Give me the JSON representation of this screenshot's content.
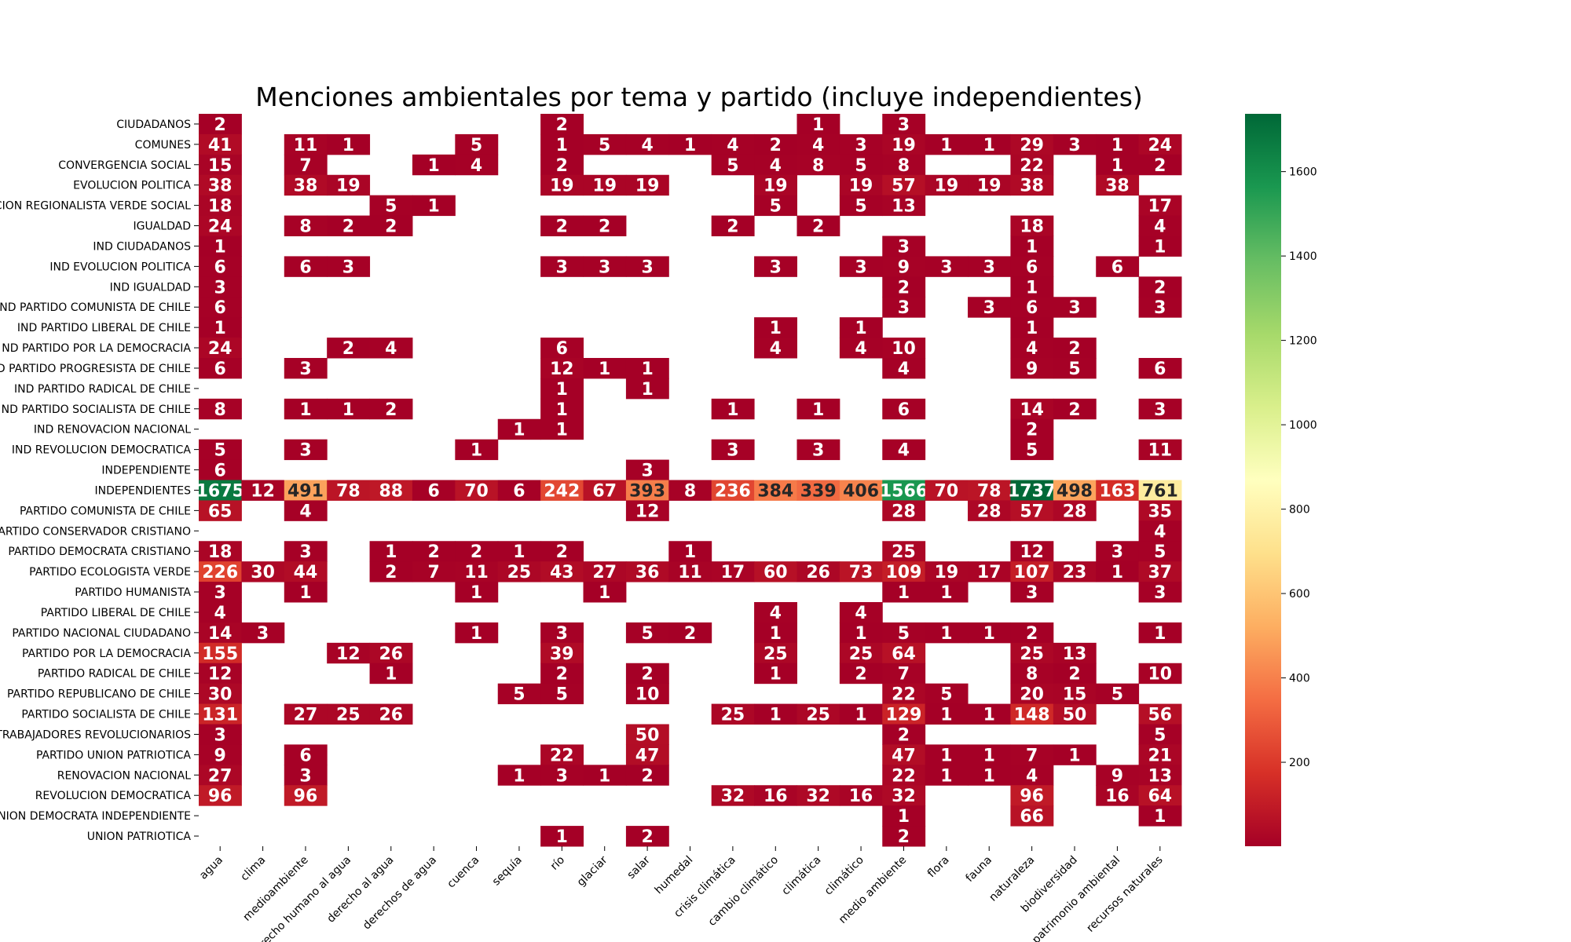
{
  "chart_data": {
    "type": "heatmap",
    "title": "Menciones ambientales por tema y partido (incluye independientes)",
    "xlabel": "",
    "ylabel": "",
    "colormap": [
      "#a50026",
      "#d73027",
      "#f46d43",
      "#fdae61",
      "#fee08b",
      "#ffffbf",
      "#d9ef8b",
      "#a6d96a",
      "#66bd63",
      "#1a9850",
      "#006837"
    ],
    "color_range": [
      1,
      1737
    ],
    "colorbar_ticks": [
      200,
      400,
      600,
      800,
      1000,
      1200,
      1400,
      1600
    ],
    "columns": [
      "agua",
      "clima",
      "medioambiente",
      "derecho humano al agua",
      "derecho al agua",
      "derechos de agua",
      "cuenca",
      "sequía",
      "río",
      "glaciar",
      "salar",
      "humedal",
      "crisis climática",
      "cambio climático",
      "climática",
      "climático",
      "medio ambiente",
      "flora",
      "fauna",
      "naturaleza",
      "biodiversidad",
      "patrimonio ambiental",
      "recursos naturales"
    ],
    "rows": [
      "CIUDADANOS",
      "COMUNES",
      "CONVERGENCIA SOCIAL",
      "EVOLUCION POLITICA",
      "FEDERACION REGIONALISTA VERDE SOCIAL",
      "IGUALDAD",
      "IND CIUDADANOS",
      "IND EVOLUCION POLITICA",
      "IND IGUALDAD",
      "IND PARTIDO COMUNISTA DE CHILE",
      "IND PARTIDO LIBERAL DE CHILE",
      "IND PARTIDO POR LA DEMOCRACIA",
      "IND PARTIDO PROGRESISTA DE CHILE",
      "IND PARTIDO RADICAL DE CHILE",
      "IND PARTIDO SOCIALISTA DE CHILE",
      "IND RENOVACION NACIONAL",
      "IND REVOLUCION DEMOCRATICA",
      "INDEPENDIENTE",
      "INDEPENDIENTES",
      "PARTIDO COMUNISTA DE CHILE",
      "PARTIDO CONSERVADOR CRISTIANO",
      "PARTIDO DEMOCRATA CRISTIANO",
      "PARTIDO ECOLOGISTA VERDE",
      "PARTIDO HUMANISTA",
      "PARTIDO LIBERAL DE CHILE",
      "PARTIDO NACIONAL CIUDADANO",
      "PARTIDO POR LA DEMOCRACIA",
      "PARTIDO RADICAL DE CHILE",
      "PARTIDO REPUBLICANO DE CHILE",
      "PARTIDO SOCIALISTA DE CHILE",
      "PARTIDO DE TRABAJADORES REVOLUCIONARIOS",
      "PARTIDO UNION PATRIOTICA",
      "RENOVACION NACIONAL",
      "REVOLUCION DEMOCRATICA",
      "UNION DEMOCRATA INDEPENDIENTE",
      "UNION PATRIOTICA"
    ],
    "row_labels_visible": [
      "CIUDADANOS",
      "COMUNES",
      "CONVERGENCIA SOCIAL",
      "EVOLUCION POLITICA",
      "CION REGIONALISTA VERDE SOCIAL",
      "IGUALDAD",
      "IND CIUDADANOS",
      "IND EVOLUCION POLITICA",
      "IND IGUALDAD",
      "ND PARTIDO COMUNISTA DE CHILE",
      "IND PARTIDO LIBERAL DE CHILE",
      "ND PARTIDO POR LA DEMOCRACIA",
      "D PARTIDO PROGRESISTA DE CHILE",
      "IND PARTIDO RADICAL DE CHILE",
      "ND PARTIDO SOCIALISTA DE CHILE",
      "IND RENOVACION NACIONAL",
      "IND REVOLUCION DEMOCRATICA",
      "INDEPENDIENTE",
      "INDEPENDIENTES",
      "PARTIDO COMUNISTA DE CHILE",
      "ARTIDO CONSERVADOR CRISTIANO",
      "PARTIDO DEMOCRATA CRISTIANO",
      "PARTIDO ECOLOGISTA VERDE",
      "PARTIDO HUMANISTA",
      "PARTIDO LIBERAL DE CHILE",
      "PARTIDO NACIONAL CIUDADANO",
      "PARTIDO POR LA DEMOCRACIA",
      "PARTIDO RADICAL DE CHILE",
      "PARTIDO REPUBLICANO DE CHILE",
      "PARTIDO SOCIALISTA DE CHILE",
      "TRABAJADORES REVOLUCIONARIOS",
      "PARTIDO UNION PATRIOTICA",
      "RENOVACION NACIONAL",
      "REVOLUCION DEMOCRATICA",
      "NION DEMOCRATA INDEPENDIENTE",
      "UNION PATRIOTICA"
    ],
    "values": [
      [
        2,
        null,
        null,
        null,
        null,
        null,
        null,
        null,
        2,
        null,
        null,
        null,
        null,
        null,
        1,
        null,
        3,
        null,
        null,
        null,
        null,
        null,
        null
      ],
      [
        41,
        null,
        11,
        1,
        null,
        null,
        5,
        null,
        1,
        5,
        4,
        1,
        4,
        2,
        4,
        3,
        19,
        1,
        1,
        29,
        3,
        1,
        24
      ],
      [
        15,
        null,
        7,
        null,
        null,
        1,
        4,
        null,
        2,
        null,
        null,
        null,
        5,
        4,
        8,
        5,
        8,
        null,
        null,
        22,
        null,
        1,
        2
      ],
      [
        38,
        null,
        38,
        19,
        null,
        null,
        null,
        null,
        19,
        19,
        19,
        null,
        null,
        19,
        null,
        19,
        57,
        19,
        19,
        38,
        null,
        38,
        null
      ],
      [
        18,
        null,
        null,
        null,
        5,
        1,
        null,
        null,
        null,
        null,
        null,
        null,
        null,
        5,
        null,
        5,
        13,
        null,
        null,
        null,
        null,
        null,
        17
      ],
      [
        24,
        null,
        8,
        2,
        2,
        null,
        null,
        null,
        2,
        2,
        null,
        null,
        2,
        null,
        2,
        null,
        null,
        null,
        null,
        18,
        null,
        null,
        4
      ],
      [
        1,
        null,
        null,
        null,
        null,
        null,
        null,
        null,
        null,
        null,
        null,
        null,
        null,
        null,
        null,
        null,
        3,
        null,
        null,
        1,
        null,
        null,
        1
      ],
      [
        6,
        null,
        6,
        3,
        null,
        null,
        null,
        null,
        3,
        3,
        3,
        null,
        null,
        3,
        null,
        3,
        9,
        3,
        3,
        6,
        null,
        6,
        null
      ],
      [
        3,
        null,
        null,
        null,
        null,
        null,
        null,
        null,
        null,
        null,
        null,
        null,
        null,
        null,
        null,
        null,
        2,
        null,
        null,
        1,
        null,
        null,
        2
      ],
      [
        6,
        null,
        null,
        null,
        null,
        null,
        null,
        null,
        null,
        null,
        null,
        null,
        null,
        null,
        null,
        null,
        3,
        null,
        3,
        6,
        3,
        null,
        3
      ],
      [
        1,
        null,
        null,
        null,
        null,
        null,
        null,
        null,
        null,
        null,
        null,
        null,
        null,
        1,
        null,
        1,
        null,
        null,
        null,
        1,
        null,
        null,
        null
      ],
      [
        24,
        null,
        null,
        2,
        4,
        null,
        null,
        null,
        6,
        null,
        null,
        null,
        null,
        4,
        null,
        4,
        10,
        null,
        null,
        4,
        2,
        null,
        null
      ],
      [
        6,
        null,
        3,
        null,
        null,
        null,
        null,
        null,
        12,
        1,
        1,
        null,
        null,
        null,
        null,
        null,
        4,
        null,
        null,
        9,
        5,
        null,
        6
      ],
      [
        null,
        null,
        null,
        null,
        null,
        null,
        null,
        null,
        1,
        null,
        1,
        null,
        null,
        null,
        null,
        null,
        null,
        null,
        null,
        null,
        null,
        null,
        null
      ],
      [
        8,
        null,
        1,
        1,
        2,
        null,
        null,
        null,
        1,
        null,
        null,
        null,
        1,
        null,
        1,
        null,
        6,
        null,
        null,
        14,
        2,
        null,
        3
      ],
      [
        null,
        null,
        null,
        null,
        null,
        null,
        null,
        1,
        1,
        null,
        null,
        null,
        null,
        null,
        null,
        null,
        null,
        null,
        null,
        2,
        null,
        null,
        null
      ],
      [
        5,
        null,
        3,
        null,
        null,
        null,
        1,
        null,
        null,
        null,
        null,
        null,
        3,
        null,
        3,
        null,
        4,
        null,
        null,
        5,
        null,
        null,
        11
      ],
      [
        6,
        null,
        null,
        null,
        null,
        null,
        null,
        null,
        null,
        null,
        3,
        null,
        null,
        null,
        null,
        null,
        null,
        null,
        null,
        null,
        null,
        null,
        null
      ],
      [
        1675,
        12,
        491,
        78,
        88,
        6,
        70,
        6,
        242,
        67,
        393,
        8,
        236,
        384,
        339,
        406,
        1566,
        70,
        78,
        1737,
        498,
        163,
        761
      ],
      [
        65,
        null,
        4,
        null,
        null,
        null,
        null,
        null,
        null,
        null,
        12,
        null,
        null,
        null,
        null,
        null,
        28,
        null,
        28,
        57,
        28,
        null,
        35
      ],
      [
        null,
        null,
        null,
        null,
        null,
        null,
        null,
        null,
        null,
        null,
        null,
        null,
        null,
        null,
        null,
        null,
        null,
        null,
        null,
        null,
        null,
        null,
        4
      ],
      [
        18,
        null,
        3,
        null,
        1,
        2,
        2,
        1,
        2,
        null,
        null,
        1,
        null,
        null,
        null,
        null,
        25,
        null,
        null,
        12,
        null,
        3,
        5
      ],
      [
        226,
        30,
        44,
        null,
        2,
        7,
        11,
        25,
        43,
        27,
        36,
        11,
        17,
        60,
        26,
        73,
        109,
        19,
        17,
        107,
        23,
        1,
        37
      ],
      [
        3,
        null,
        1,
        null,
        null,
        null,
        1,
        null,
        null,
        1,
        null,
        null,
        null,
        null,
        null,
        null,
        1,
        1,
        null,
        3,
        null,
        null,
        3
      ],
      [
        4,
        null,
        null,
        null,
        null,
        null,
        null,
        null,
        null,
        null,
        null,
        null,
        null,
        4,
        null,
        4,
        null,
        null,
        null,
        null,
        null,
        null,
        null
      ],
      [
        14,
        3,
        null,
        null,
        null,
        null,
        1,
        null,
        3,
        null,
        5,
        2,
        null,
        1,
        null,
        1,
        5,
        1,
        1,
        2,
        null,
        null,
        1
      ],
      [
        155,
        null,
        null,
        12,
        26,
        null,
        null,
        null,
        39,
        null,
        null,
        null,
        null,
        25,
        null,
        25,
        64,
        null,
        null,
        25,
        13,
        null,
        null
      ],
      [
        12,
        null,
        null,
        null,
        1,
        null,
        null,
        null,
        2,
        null,
        2,
        null,
        null,
        1,
        null,
        2,
        7,
        null,
        null,
        8,
        2,
        null,
        10
      ],
      [
        30,
        null,
        null,
        null,
        null,
        null,
        null,
        5,
        5,
        null,
        10,
        null,
        null,
        null,
        null,
        null,
        22,
        5,
        null,
        20,
        15,
        5,
        null
      ],
      [
        131,
        null,
        27,
        25,
        26,
        null,
        null,
        null,
        null,
        null,
        null,
        null,
        25,
        1,
        25,
        1,
        129,
        1,
        1,
        148,
        50,
        null,
        56
      ],
      [
        3,
        null,
        null,
        null,
        null,
        null,
        null,
        null,
        null,
        null,
        50,
        null,
        null,
        null,
        null,
        null,
        2,
        null,
        null,
        null,
        null,
        null,
        5
      ],
      [
        9,
        null,
        6,
        null,
        null,
        null,
        null,
        null,
        22,
        null,
        47,
        null,
        null,
        null,
        null,
        null,
        47,
        1,
        1,
        7,
        1,
        null,
        21
      ],
      [
        27,
        null,
        3,
        null,
        null,
        null,
        null,
        1,
        3,
        1,
        2,
        null,
        null,
        null,
        null,
        null,
        22,
        1,
        1,
        4,
        null,
        9,
        13
      ],
      [
        96,
        null,
        96,
        null,
        null,
        null,
        null,
        null,
        null,
        null,
        null,
        null,
        32,
        16,
        32,
        16,
        32,
        null,
        null,
        96,
        null,
        16,
        64
      ],
      [
        null,
        null,
        null,
        null,
        null,
        null,
        null,
        null,
        null,
        null,
        null,
        null,
        null,
        null,
        null,
        null,
        1,
        null,
        null,
        66,
        null,
        null,
        1
      ],
      [
        null,
        null,
        null,
        null,
        null,
        null,
        null,
        null,
        1,
        null,
        2,
        null,
        null,
        null,
        null,
        null,
        2,
        null,
        null,
        null,
        null,
        null,
        null
      ]
    ]
  }
}
